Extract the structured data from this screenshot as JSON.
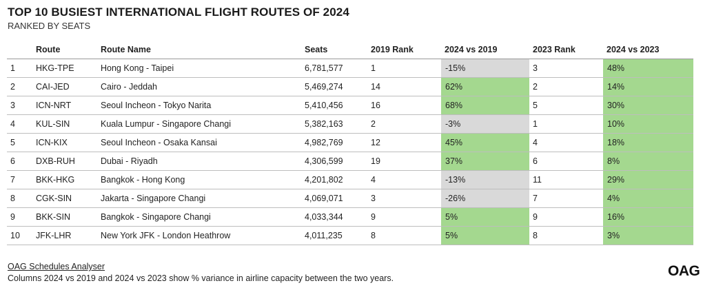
{
  "title": "TOP 10 BUSIEST INTERNATIONAL FLIGHT ROUTES OF 2024",
  "subtitle": "RANKED BY SEATS",
  "colors": {
    "positive": "#a4d88f",
    "negative": "#d9d9d9"
  },
  "chart_data": {
    "type": "table",
    "columns": [
      "",
      "Route",
      "Route Name",
      "Seats",
      "2019 Rank",
      "2024 vs 2019",
      "2023 Rank",
      "2024 vs 2023"
    ],
    "rows": [
      [
        "1",
        "HKG-TPE",
        "Hong Kong - Taipei",
        "6,781,577",
        "1",
        "-15%",
        "3",
        "48%"
      ],
      [
        "2",
        "CAI-JED",
        "Cairo - Jeddah",
        "5,469,274",
        "14",
        "62%",
        "2",
        "14%"
      ],
      [
        "3",
        "ICN-NRT",
        "Seoul Incheon - Tokyo Narita",
        "5,410,456",
        "16",
        "68%",
        "5",
        "30%"
      ],
      [
        "4",
        "KUL-SIN",
        "Kuala Lumpur - Singapore Changi",
        "5,382,163",
        "2",
        "-3%",
        "1",
        "10%"
      ],
      [
        "5",
        "ICN-KIX",
        "Seoul Incheon - Osaka Kansai",
        "4,982,769",
        "12",
        "45%",
        "4",
        "18%"
      ],
      [
        "6",
        "DXB-RUH",
        "Dubai - Riyadh",
        "4,306,599",
        "19",
        "37%",
        "6",
        "8%"
      ],
      [
        "7",
        "BKK-HKG",
        "Bangkok - Hong Kong",
        "4,201,802",
        "4",
        "-13%",
        "11",
        "29%"
      ],
      [
        "8",
        "CGK-SIN",
        "Jakarta - Singapore Changi",
        "4,069,071",
        "3",
        "-26%",
        "7",
        "4%"
      ],
      [
        "9",
        "BKK-SIN",
        "Bangkok - Singapore Changi",
        "4,033,344",
        "9",
        "5%",
        "9",
        "16%"
      ],
      [
        "10",
        "JFK-LHR",
        "New York JFK - London Heathrow",
        "4,011,235",
        "8",
        "5%",
        "8",
        "3%"
      ]
    ]
  },
  "footer": {
    "source": "OAG Schedules Analyser",
    "note": "Columns 2024 vs 2019 and 2024 vs 2023 show % variance in airline capacity between the two years."
  },
  "logo_text": "OAG"
}
